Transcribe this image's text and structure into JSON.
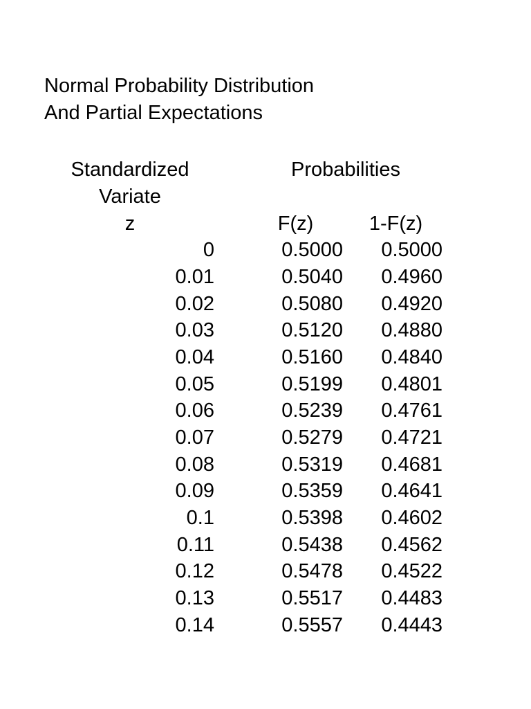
{
  "document": {
    "title_lines": [
      "Normal Probability Distribution",
      "And Partial Expectations"
    ]
  },
  "table": {
    "variate_header": [
      "Standardized",
      "Variate"
    ],
    "probabilities_header": "Probabilities",
    "columns": {
      "z": "z",
      "fz": "F(z)",
      "one_minus_fz": "1-F(z)"
    },
    "rows": [
      {
        "z": "0",
        "fz": "0.5000",
        "one_minus_fz": "0.5000"
      },
      {
        "z": "0.01",
        "fz": "0.5040",
        "one_minus_fz": "0.4960"
      },
      {
        "z": "0.02",
        "fz": "0.5080",
        "one_minus_fz": "0.4920"
      },
      {
        "z": "0.03",
        "fz": "0.5120",
        "one_minus_fz": "0.4880"
      },
      {
        "z": "0.04",
        "fz": "0.5160",
        "one_minus_fz": "0.4840"
      },
      {
        "z": "0.05",
        "fz": "0.5199",
        "one_minus_fz": "0.4801"
      },
      {
        "z": "0.06",
        "fz": "0.5239",
        "one_minus_fz": "0.4761"
      },
      {
        "z": "0.07",
        "fz": "0.5279",
        "one_minus_fz": "0.4721"
      },
      {
        "z": "0.08",
        "fz": "0.5319",
        "one_minus_fz": "0.4681"
      },
      {
        "z": "0.09",
        "fz": "0.5359",
        "one_minus_fz": "0.4641"
      },
      {
        "z": "0.1",
        "fz": "0.5398",
        "one_minus_fz": "0.4602"
      },
      {
        "z": "0.11",
        "fz": "0.5438",
        "one_minus_fz": "0.4562"
      },
      {
        "z": "0.12",
        "fz": "0.5478",
        "one_minus_fz": "0.4522"
      },
      {
        "z": "0.13",
        "fz": "0.5517",
        "one_minus_fz": "0.4483"
      },
      {
        "z": "0.14",
        "fz": "0.5557",
        "one_minus_fz": "0.4443"
      }
    ]
  },
  "colors": {
    "text": "#000000",
    "background": "#ffffff"
  }
}
